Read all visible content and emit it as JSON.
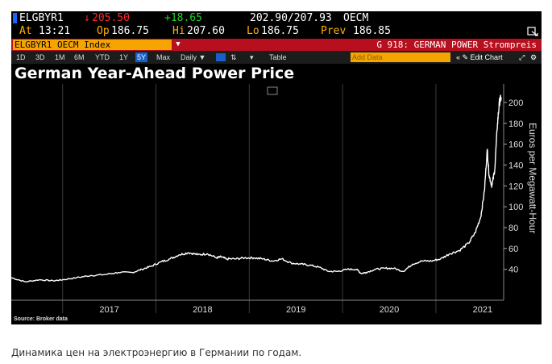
{
  "header": {
    "ticker": "ELGBYR1",
    "arrow": "↓",
    "last": "205.50",
    "change": "+18.65",
    "range": "202.90/207.93",
    "exchange": "OECM",
    "at_label": "At",
    "time": "13:21",
    "op_label": "Op",
    "open": "186.75",
    "hi_label": "Hi",
    "high": "207.60",
    "lo_label": "Lo",
    "low": "186.75",
    "prev_label": "Prev",
    "prev": "186.85",
    "corner_icon": "chart-settings-icon"
  },
  "security_bar": {
    "security": "ELGBYR1 OECM Index",
    "dropdown_icon": "dropdown-icon",
    "page_title": "G 918: GERMAN POWER Strompreis"
  },
  "toolbar": {
    "ranges": [
      "1D",
      "3D",
      "1M",
      "6M",
      "YTD",
      "1Y",
      "5Y",
      "Max"
    ],
    "selected_range": "5Y",
    "frequency": "Daily ▼",
    "table_label": "Table",
    "add_data_placeholder": "Add Data",
    "edit_label": "« ✎ Edit Chart",
    "colors": {
      "selected": "#1660c8",
      "add_data": "#f5a400",
      "accent_red": "#b70f1e"
    }
  },
  "source_note": "Source: Broker data",
  "caption": "Динамика цен на электроэнергию в Германии по годам.",
  "chart_data": {
    "type": "line",
    "title": "German Year-Ahead Power Price",
    "ylabel": "Euros per Megawatt-Hour",
    "xlabel": "",
    "x_ticks": [
      "2017",
      "2018",
      "2019",
      "2020",
      "2021"
    ],
    "y_ticks": [
      40,
      60,
      80,
      100,
      120,
      140,
      160,
      180,
      200
    ],
    "xlim": [
      2016.45,
      2021.7
    ],
    "ylim": [
      15,
      210
    ],
    "grid": "vertical",
    "line_color": "#ffffff",
    "series": [
      {
        "x": [
          2016.45,
          2016.6,
          2016.75,
          2016.9,
          2017.0,
          2017.15,
          2017.3,
          2017.45,
          2017.6,
          2017.75,
          2017.85,
          2017.95,
          2018.05,
          2018.15,
          2018.25,
          2018.35,
          2018.45,
          2018.55,
          2018.65,
          2018.7,
          2018.75,
          2018.85,
          2018.95,
          2019.05,
          2019.15,
          2019.25,
          2019.35,
          2019.45,
          2019.55,
          2019.65,
          2019.75,
          2019.85,
          2019.95,
          2020.05,
          2020.15,
          2020.2,
          2020.25,
          2020.35,
          2020.45,
          2020.55,
          2020.65,
          2020.75,
          2020.85,
          2020.95,
          2021.05,
          2021.15,
          2021.25,
          2021.35,
          2021.42,
          2021.48,
          2021.52,
          2021.55,
          2021.57,
          2021.6,
          2021.63,
          2021.66,
          2021.68,
          2021.7
        ],
        "y": [
          32,
          28,
          30,
          29,
          30,
          32,
          34,
          35,
          37,
          37,
          40,
          43,
          47,
          50,
          54,
          56,
          54,
          55,
          51,
          52,
          50,
          50,
          51,
          51,
          50,
          48,
          50,
          46,
          45,
          44,
          42,
          38,
          38,
          40,
          40,
          36,
          37,
          40,
          41,
          41,
          38,
          45,
          48,
          48,
          50,
          55,
          58,
          65,
          75,
          90,
          115,
          155,
          130,
          120,
          135,
          180,
          200,
          205
        ]
      }
    ]
  }
}
